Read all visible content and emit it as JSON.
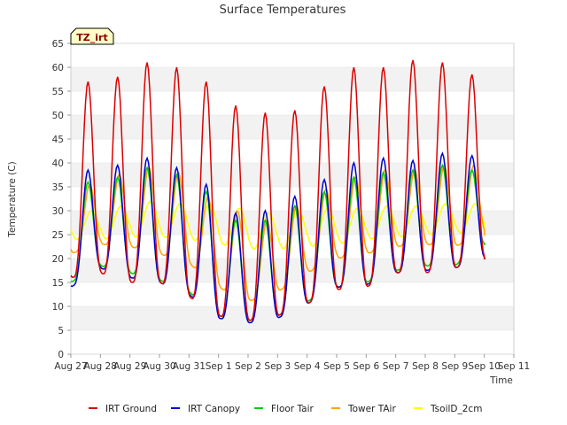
{
  "chart_data": {
    "type": "line",
    "title": "Surface Temperatures",
    "xlabel": "Time",
    "ylabel": "Temperature (C)",
    "badge": "TZ_irt",
    "ylim": [
      0,
      65
    ],
    "yticks": [
      0,
      5,
      10,
      15,
      20,
      25,
      30,
      35,
      40,
      45,
      50,
      55,
      60,
      65
    ],
    "xlim": [
      0,
      15
    ],
    "xticks": [
      {
        "x": 0,
        "label": "Aug 27"
      },
      {
        "x": 1,
        "label": "Aug 28"
      },
      {
        "x": 2,
        "label": "Aug 29"
      },
      {
        "x": 3,
        "label": "Aug 30"
      },
      {
        "x": 4,
        "label": "Aug 31"
      },
      {
        "x": 5,
        "label": "Sep 1"
      },
      {
        "x": 6,
        "label": "Sep 2"
      },
      {
        "x": 7,
        "label": "Sep 3"
      },
      {
        "x": 8,
        "label": "Sep 4"
      },
      {
        "x": 9,
        "label": "Sep 5"
      },
      {
        "x": 10,
        "label": "Sep 6"
      },
      {
        "x": 11,
        "label": "Sep 7"
      },
      {
        "x": 12,
        "label": "Sep 8"
      },
      {
        "x": 13,
        "label": "Sep 9"
      },
      {
        "x": 14,
        "label": "Sep 10"
      },
      {
        "x": 15,
        "label": "Sep 11"
      }
    ],
    "grid": "horizontal alternating bands",
    "legend_position": "bottom",
    "series": [
      {
        "name": "IRT Ground",
        "color": "#dd0000",
        "daily": [
          [
            16,
            57
          ],
          [
            17,
            58
          ],
          [
            15,
            61
          ],
          [
            15,
            60
          ],
          [
            12,
            57
          ],
          [
            8,
            52
          ],
          [
            7,
            50.5
          ],
          [
            8,
            51
          ],
          [
            10.5,
            56
          ],
          [
            13.5,
            60
          ],
          [
            14,
            60
          ],
          [
            17,
            61.5
          ],
          [
            17,
            61
          ],
          [
            18,
            58.5
          ],
          [
            20,
            20
          ]
        ]
      },
      {
        "name": "IRT Canopy",
        "color": "#0000cc",
        "daily": [
          [
            14,
            38.5
          ],
          [
            18,
            39.5
          ],
          [
            16,
            41
          ],
          [
            15,
            39
          ],
          [
            12.5,
            35.5
          ],
          [
            7.5,
            29.5
          ],
          [
            6.5,
            30
          ],
          [
            7.5,
            33
          ],
          [
            10.5,
            36.5
          ],
          [
            14,
            40
          ],
          [
            14.5,
            41
          ],
          [
            17,
            40.5
          ],
          [
            17.5,
            42
          ],
          [
            18,
            41.5
          ],
          [
            20,
            20
          ]
        ]
      },
      {
        "name": "Floor Tair",
        "color": "#00cc00",
        "daily": [
          [
            15,
            36
          ],
          [
            18.5,
            37
          ],
          [
            17,
            39
          ],
          [
            15.5,
            37.5
          ],
          [
            13,
            34
          ],
          [
            8,
            28
          ],
          [
            7,
            28
          ],
          [
            8,
            31
          ],
          [
            11,
            34
          ],
          [
            14,
            37
          ],
          [
            15,
            38
          ],
          [
            17.5,
            38.5
          ],
          [
            18.5,
            39.5
          ],
          [
            18.5,
            38.5
          ],
          [
            23,
            23
          ]
        ]
      },
      {
        "name": "Tower TAir",
        "color": "#ffa500",
        "daily": [
          [
            21,
            35.5
          ],
          [
            23,
            37.5
          ],
          [
            22.5,
            39
          ],
          [
            21,
            38
          ],
          [
            19,
            33
          ],
          [
            14,
            30
          ],
          [
            11,
            28
          ],
          [
            13,
            31
          ],
          [
            17,
            34.5
          ],
          [
            20,
            37
          ],
          [
            21,
            38.5
          ],
          [
            22.5,
            38.5
          ],
          [
            23,
            39.5
          ],
          [
            22.5,
            39.5
          ],
          [
            25,
            25
          ]
        ]
      },
      {
        "name": "TsoilD_2cm",
        "color": "#ffff00",
        "daily": [
          [
            24,
            30
          ],
          [
            24,
            31
          ],
          [
            24.5,
            32
          ],
          [
            24.5,
            31.5
          ],
          [
            24,
            31.5
          ],
          [
            23,
            30.5
          ],
          [
            22,
            29.5
          ],
          [
            22,
            30
          ],
          [
            22.5,
            30.5
          ],
          [
            23,
            30.5
          ],
          [
            24,
            31
          ],
          [
            24.5,
            31
          ],
          [
            25,
            31.5
          ],
          [
            25.5,
            31.5
          ],
          [
            25,
            25
          ]
        ]
      }
    ]
  }
}
